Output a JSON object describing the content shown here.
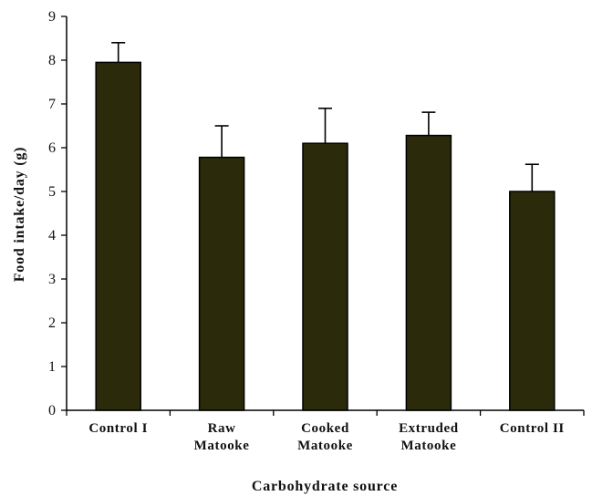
{
  "chart_data": {
    "type": "bar",
    "title": "",
    "xlabel": "Carbohydrate source",
    "ylabel": "Food intake/day (g)",
    "categories": [
      [
        "Control I"
      ],
      [
        "Raw",
        "Matooke"
      ],
      [
        "Cooked",
        "Matooke"
      ],
      [
        "Extruded",
        "Matooke"
      ],
      [
        "Control II"
      ]
    ],
    "values": [
      7.95,
      5.78,
      6.1,
      6.28,
      5.0
    ],
    "error_bars": [
      0.45,
      0.72,
      0.8,
      0.53,
      0.62
    ],
    "ylim": [
      0,
      9
    ],
    "yticks": [
      0,
      1,
      2,
      3,
      4,
      5,
      6,
      7,
      8,
      9
    ],
    "grid": false,
    "legend": "none",
    "colors": {
      "bar_fill": "#2b2b0b",
      "bar_stroke": "#000000",
      "axis": "#000000"
    }
  }
}
